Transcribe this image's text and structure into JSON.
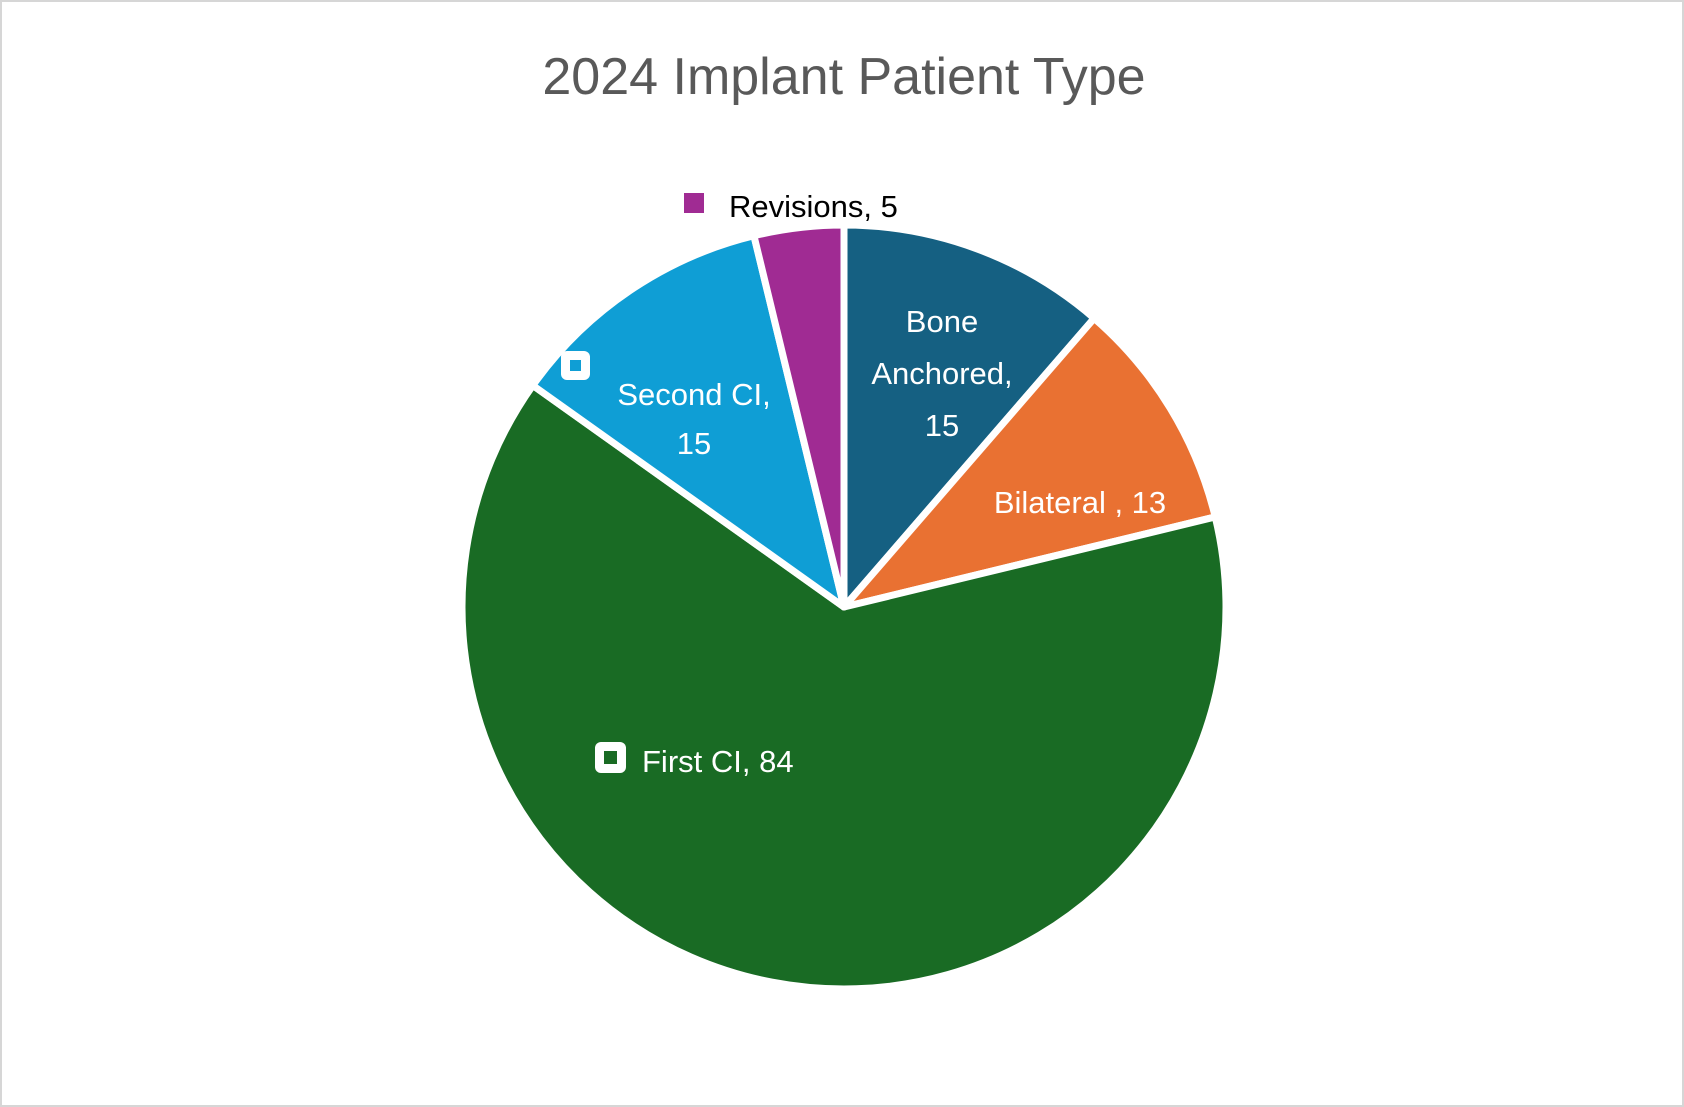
{
  "chart_data": {
    "type": "pie",
    "title": "2024 Implant Patient Type",
    "total": 132,
    "start_angle_deg": 0,
    "direction": "clockwise",
    "legend_position": "none",
    "background": "#FFFFFF",
    "frame_border_color": "#D6D6D6",
    "title_color": "#595959",
    "slice_gap_color": "#FFFFFF",
    "categories": [
      "Bone Anchored",
      "Bilateral",
      "First CI",
      "Second CI",
      "Revisions"
    ],
    "values": [
      15,
      13,
      84,
      15,
      5
    ],
    "slices": [
      {
        "name": "Bone Anchored",
        "value": 15,
        "color": "#156082",
        "label_lines": [
          "Bone",
          "Anchored,",
          "15"
        ],
        "label_color": "#FFFFFF",
        "legend_key": false,
        "label_position": "inside"
      },
      {
        "name": "Bilateral",
        "value": 13,
        "color": "#E97132",
        "label_lines": [
          "Bilateral , 13"
        ],
        "label_color": "#FFFFFF",
        "legend_key": false,
        "label_position": "inside"
      },
      {
        "name": "First CI",
        "value": 84,
        "color": "#196B24",
        "label_lines": [
          "First CI, 84"
        ],
        "label_color": "#FFFFFF",
        "legend_key": true,
        "label_position": "inside"
      },
      {
        "name": "Second CI",
        "value": 15,
        "color": "#0F9ED5",
        "label_lines": [
          "Second CI,",
          "15"
        ],
        "label_color": "#FFFFFF",
        "legend_key": true,
        "label_position": "inside"
      },
      {
        "name": "Revisions",
        "value": 5,
        "color": "#A02B93",
        "label_lines": [
          "Revisions, 5"
        ],
        "label_color": "#000000",
        "legend_key": true,
        "label_position": "outside"
      }
    ]
  }
}
